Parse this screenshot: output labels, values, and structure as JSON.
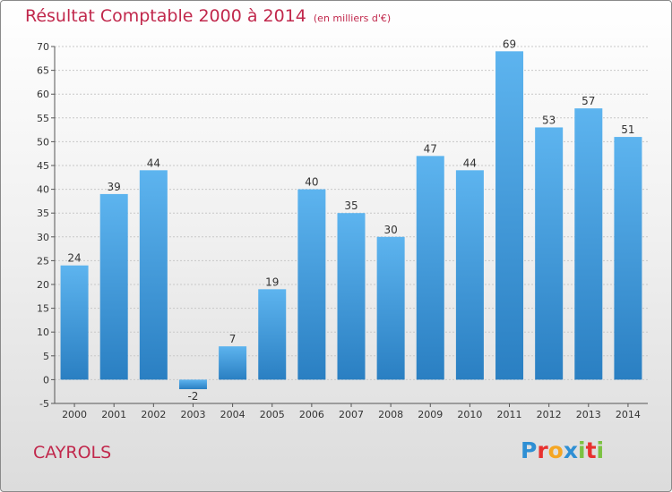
{
  "title": "Résultat Comptable 2000 à 2014",
  "subtitle": "(en milliers d'€)",
  "city": "CAYROLS",
  "logo": {
    "text": "Proxiti",
    "letter_colors": [
      "#2e8fd4",
      "#e8312f",
      "#f5a623",
      "#2e8fd4",
      "#7cc242",
      "#e8312f",
      "#7cc242"
    ]
  },
  "colors": {
    "bar": "#3d9ee3",
    "title": "#c1284c"
  },
  "chart_data": {
    "type": "bar",
    "title": "Résultat Comptable 2000 à 2014",
    "subtitle": "(en milliers d'€)",
    "categories": [
      "2000",
      "2001",
      "2002",
      "2003",
      "2004",
      "2005",
      "2006",
      "2007",
      "2008",
      "2009",
      "2010",
      "2011",
      "2012",
      "2013",
      "2014"
    ],
    "values": [
      24,
      39,
      44,
      -2,
      7,
      19,
      40,
      35,
      30,
      47,
      44,
      69,
      53,
      57,
      51
    ],
    "ylim": [
      -5,
      70
    ],
    "yticks": [
      -5,
      0,
      5,
      10,
      15,
      20,
      25,
      30,
      35,
      40,
      45,
      50,
      55,
      60,
      65,
      70
    ],
    "grid": true,
    "xlabel": "",
    "ylabel": ""
  }
}
